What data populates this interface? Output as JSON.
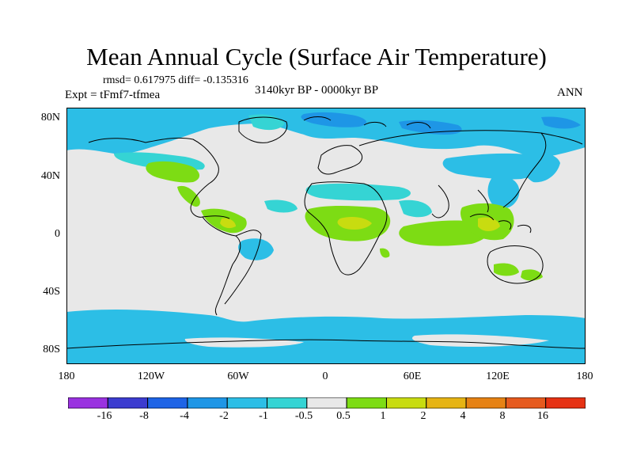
{
  "title": "Mean Annual Cycle (Surface Air Temperature)",
  "stats": "rmsd= 0.617975 diff= -0.135316",
  "experiment": "Expt = tFmf7-tfmea",
  "period": "3140kyr BP - 0000kyr BP",
  "season": "ANN",
  "lat_labels": [
    "80N",
    "40N",
    "0",
    "40S",
    "80S"
  ],
  "lon_labels": [
    "180",
    "120W",
    "60W",
    "0",
    "60E",
    "120E",
    "180"
  ],
  "colorbar": {
    "labels": [
      "-16",
      "-8",
      "-4",
      "-2",
      "-1",
      "-0.5",
      "0.5",
      "1",
      "2",
      "4",
      "8",
      "16"
    ],
    "colors": [
      "#9a32e0",
      "#3c3cd0",
      "#1e64e6",
      "#1e96e6",
      "#2cbee6",
      "#35d4d4",
      "#e8e8e8",
      "#7ddc14",
      "#c8dc10",
      "#e6b414",
      "#e68214",
      "#e65a1e",
      "#e63214"
    ]
  },
  "map_colors": {
    "background": "#e8e8e8",
    "cool_strong": "#1e96e6",
    "cool": "#2cbee6",
    "cool_light": "#35d4d4",
    "warm": "#7ddc14",
    "warm_strong": "#c8dc10"
  }
}
